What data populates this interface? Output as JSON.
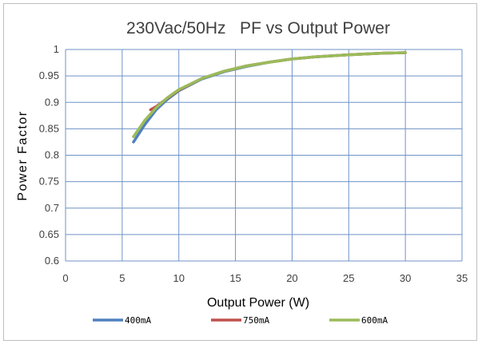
{
  "chart_data": {
    "type": "line",
    "title": "230Vac/50Hz   PF vs Output Power",
    "xlabel": "Output Power (W)",
    "ylabel": "Power Factor",
    "xlim": [
      0,
      35
    ],
    "ylim": [
      0.6,
      1
    ],
    "xticks": [
      0,
      5,
      10,
      15,
      20,
      25,
      30,
      35
    ],
    "yticks": [
      0.6,
      0.65,
      0.7,
      0.75,
      0.8,
      0.85,
      0.9,
      0.95,
      1
    ],
    "ytick_labels": [
      "0.6",
      "0.65",
      "0.7",
      "0.75",
      "0.8",
      "0.85",
      "0.9",
      "0.95",
      "1"
    ],
    "grid": true,
    "legend_position": "bottom",
    "series": [
      {
        "name": "400mA",
        "color": "#4f81bd",
        "x": [
          6,
          7,
          8,
          9,
          10,
          12,
          14,
          16,
          18,
          20,
          22,
          25,
          28,
          30
        ],
        "y": [
          0.825,
          0.858,
          0.886,
          0.906,
          0.922,
          0.944,
          0.958,
          0.968,
          0.976,
          0.982,
          0.986,
          0.99,
          0.993,
          0.994
        ]
      },
      {
        "name": "750mA",
        "color": "#c0504d",
        "x": [
          7.5,
          8,
          9,
          10,
          12,
          14,
          16,
          18,
          20,
          22,
          25,
          28,
          30
        ],
        "y": [
          0.886,
          0.892,
          0.908,
          0.923,
          0.945,
          0.959,
          0.969,
          0.976,
          0.982,
          0.986,
          0.99,
          0.993,
          0.994
        ]
      },
      {
        "name": "600mA",
        "color": "#9bbb59",
        "x": [
          6,
          7,
          8,
          9,
          10,
          12,
          14,
          16,
          18,
          20,
          22,
          25,
          28,
          30
        ],
        "y": [
          0.835,
          0.866,
          0.89,
          0.909,
          0.924,
          0.945,
          0.959,
          0.969,
          0.976,
          0.982,
          0.986,
          0.99,
          0.993,
          0.994
        ]
      }
    ]
  }
}
